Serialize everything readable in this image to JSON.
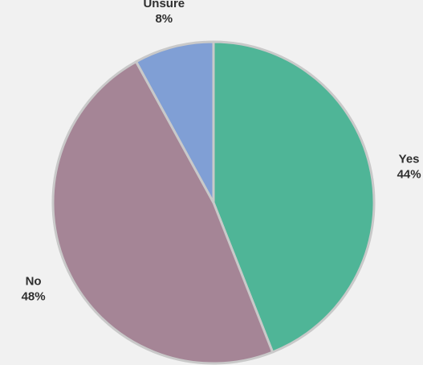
{
  "chart_data": {
    "type": "pie",
    "slices": [
      {
        "label": "Yes",
        "value": 44,
        "value_label": "44%",
        "color": "#4fb597"
      },
      {
        "label": "No",
        "value": 48,
        "value_label": "48%",
        "color": "#a58596"
      },
      {
        "label": "Unsure",
        "value": 8,
        "value_label": "8%",
        "color": "#809fd5"
      }
    ],
    "start": "top",
    "direction": "clockwise",
    "background": "#f1f1f1",
    "slice_border_color": "#c9c9c9"
  }
}
